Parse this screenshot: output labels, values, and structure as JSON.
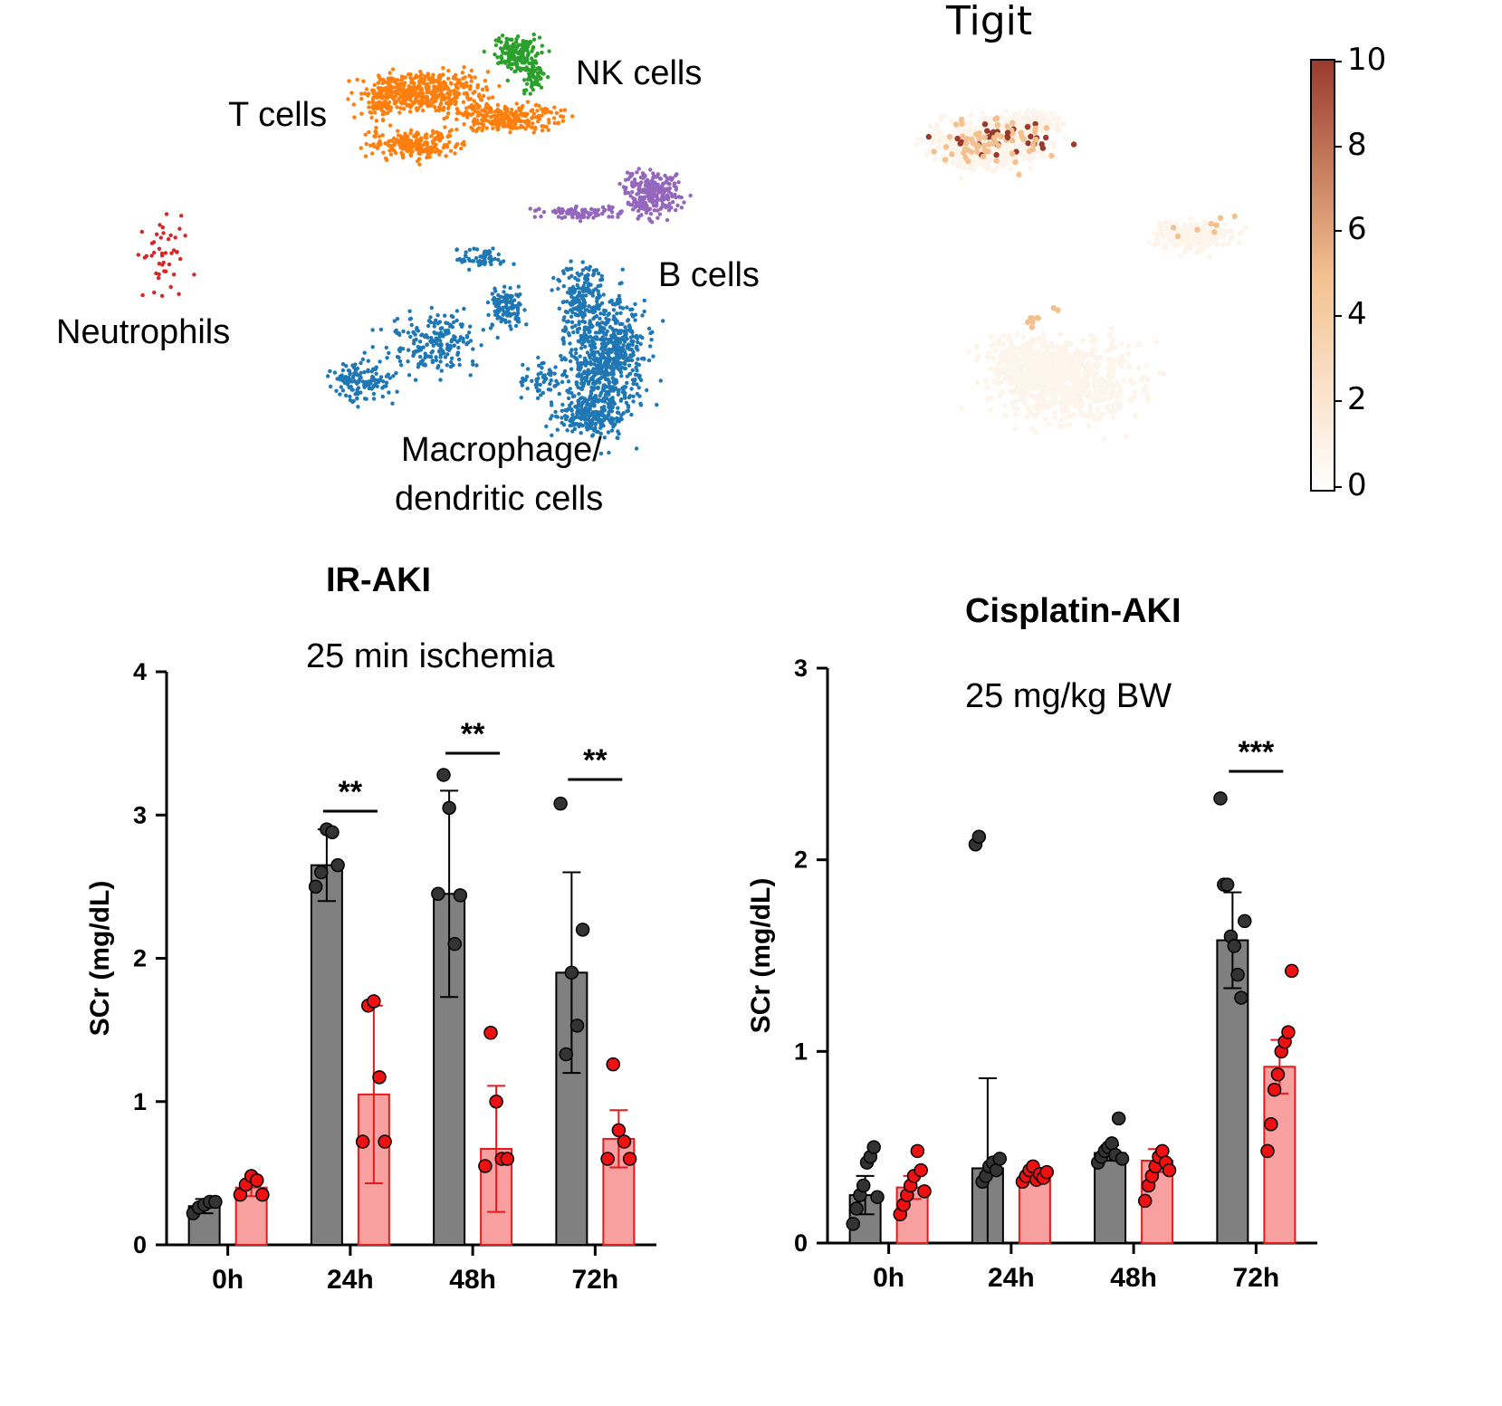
{
  "umap_clusters": {
    "labels": {
      "t_cells": "T cells",
      "nk_cells": "NK cells",
      "b_cells": "B cells",
      "neutrophils": "Neutrophils",
      "macrophage_line1": "Macrophage/",
      "macrophage_line2": "dendritic cells"
    },
    "colors": {
      "t_cells": "#ff7f0e",
      "nk_cells": "#2ca02c",
      "b_cells": "#9467bd",
      "neutrophils": "#d62728",
      "macrophage": "#1f77b4"
    }
  },
  "feature_plot": {
    "title": "Tigit",
    "colorbar_ticks": [
      "0",
      "2",
      "4",
      "6",
      "8",
      "10"
    ],
    "colorbar_range": [
      0,
      10
    ],
    "colors": {
      "low": "#fdf5ec",
      "mid": "#f3c08e",
      "high": "#9a3a2e"
    }
  },
  "chart_data": [
    {
      "type": "bar",
      "title": "IR-AKI",
      "subtitle": "25 min ischemia",
      "ylabel": "SCr (mg/dL)",
      "ylim": [
        0,
        4
      ],
      "yticks": [
        "0",
        "1",
        "2",
        "3",
        "4"
      ],
      "categories": [
        "0h",
        "24h",
        "48h",
        "72h"
      ],
      "significance": [
        "",
        "**",
        "**",
        "**"
      ],
      "series": [
        {
          "color": "#808080",
          "means": [
            0.27,
            2.65,
            2.45,
            1.9
          ],
          "errors": [
            0.05,
            0.25,
            0.72,
            0.7
          ],
          "points": [
            [
              0.22,
              0.26,
              0.28,
              0.3,
              0.3
            ],
            [
              2.5,
              2.6,
              2.9,
              2.88,
              2.65
            ],
            [
              2.45,
              3.28,
              3.05,
              2.1,
              2.44
            ],
            [
              3.08,
              1.33,
              1.9,
              1.53,
              2.2
            ]
          ]
        },
        {
          "color": "#f8a0a0",
          "means": [
            0.4,
            1.05,
            0.67,
            0.74
          ],
          "errors": [
            0.06,
            0.62,
            0.44,
            0.2
          ],
          "points": [
            [
              0.35,
              0.42,
              0.48,
              0.45,
              0.35
            ],
            [
              0.72,
              1.67,
              1.7,
              1.17,
              0.72
            ],
            [
              0.55,
              1.48,
              1.0,
              0.6,
              0.6
            ],
            [
              0.6,
              1.26,
              0.8,
              0.72,
              0.6
            ]
          ]
        }
      ]
    },
    {
      "type": "bar",
      "title": "Cisplatin-AKI",
      "subtitle": "25 mg/kg BW",
      "ylabel": "SCr (mg/dL)",
      "ylim": [
        0,
        3
      ],
      "yticks": [
        "0",
        "1",
        "2",
        "3"
      ],
      "categories": [
        "0h",
        "24h",
        "48h",
        "72h"
      ],
      "significance": [
        "",
        "",
        "",
        "***"
      ],
      "series": [
        {
          "color": "#808080",
          "means": [
            0.25,
            0.39,
            0.47,
            1.58
          ],
          "errors": [
            0.1,
            0.47,
            0.04,
            0.25
          ],
          "points": [
            [
              0.1,
              0.18,
              0.25,
              0.3,
              0.42,
              0.45,
              0.5,
              0.24
            ],
            [
              2.08,
              2.12,
              0.32,
              0.35,
              0.4,
              0.42,
              0.38,
              0.44
            ],
            [
              0.42,
              0.45,
              0.48,
              0.5,
              0.52,
              0.46,
              0.65,
              0.44
            ],
            [
              2.32,
              1.87,
              1.87,
              1.6,
              1.55,
              1.4,
              1.28,
              1.68
            ]
          ]
        },
        {
          "color": "#f8a0a0",
          "means": [
            0.29,
            0.35,
            0.43,
            0.92
          ],
          "errors": [
            0.06,
            0.03,
            0.06,
            0.14
          ],
          "points": [
            [
              0.15,
              0.2,
              0.25,
              0.3,
              0.35,
              0.48,
              0.38,
              0.27
            ],
            [
              0.32,
              0.35,
              0.38,
              0.4,
              0.33,
              0.36,
              0.34,
              0.37
            ],
            [
              0.22,
              0.3,
              0.35,
              0.4,
              0.45,
              0.48,
              0.42,
              0.38
            ],
            [
              0.48,
              0.62,
              0.8,
              0.88,
              1.0,
              1.05,
              1.1,
              1.42
            ]
          ]
        }
      ]
    }
  ]
}
